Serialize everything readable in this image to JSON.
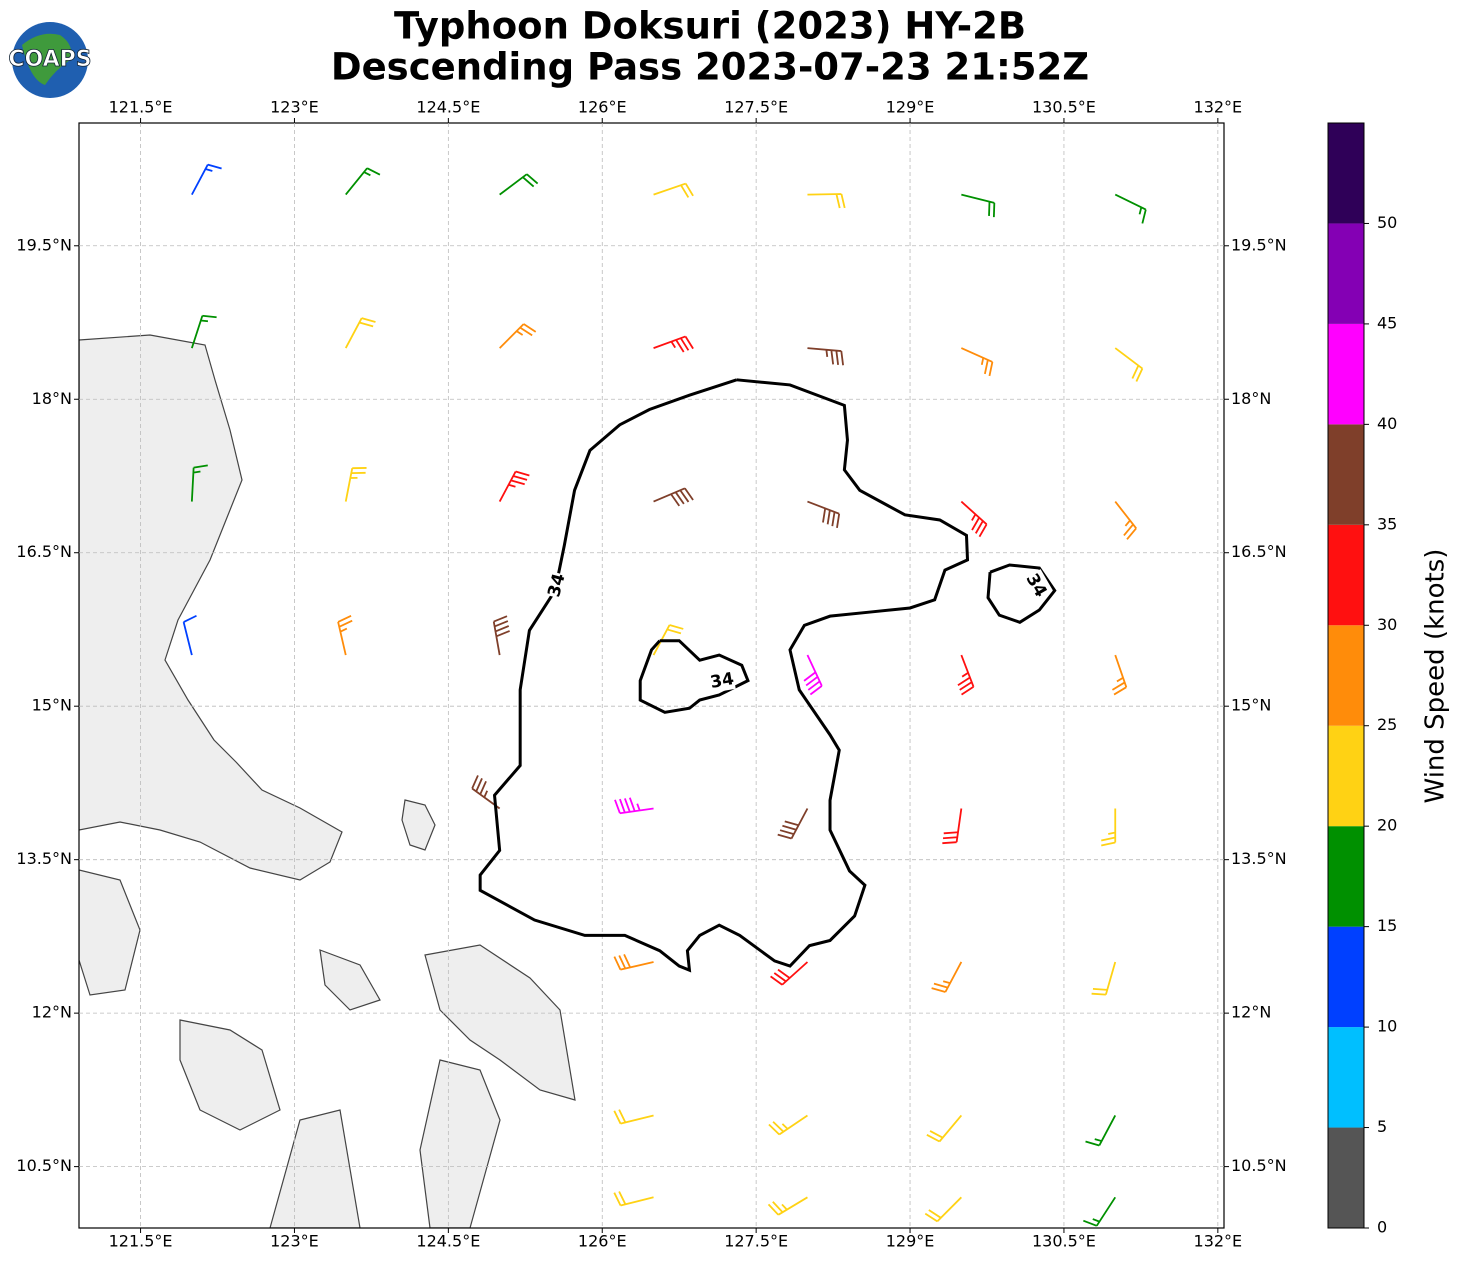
{
  "header": {
    "title_line1": "Typhoon Doksuri (2023) HY-2B",
    "title_line2": "Descending Pass 2023-07-23 21:52Z"
  },
  "logo": "COAPS",
  "map": {
    "xlim": [
      120.9,
      132.06
    ],
    "ylim": [
      9.9,
      20.7
    ],
    "grid": true,
    "xticks": [
      {
        "value": 121.5,
        "label": "121.5°E"
      },
      {
        "value": 123,
        "label": "123°E"
      },
      {
        "value": 124.5,
        "label": "124.5°E"
      },
      {
        "value": 126,
        "label": "126°E"
      },
      {
        "value": 127.5,
        "label": "127.5°E"
      },
      {
        "value": 129,
        "label": "129°E"
      },
      {
        "value": 130.5,
        "label": "130.5°E"
      },
      {
        "value": 132,
        "label": "132°E"
      }
    ],
    "yticks": [
      {
        "value": 19.5,
        "label": "19.5°N"
      },
      {
        "value": 18,
        "label": "18°N"
      },
      {
        "value": 16.5,
        "label": "16.5°N"
      },
      {
        "value": 15,
        "label": "15°N"
      },
      {
        "value": 13.5,
        "label": "13.5°N"
      },
      {
        "value": 12,
        "label": "12°N"
      },
      {
        "value": 10.5,
        "label": "10.5°N"
      }
    ],
    "wind_barbs": {
      "lon": [
        122,
        123.5,
        125,
        126.5,
        128,
        129.5,
        131
      ],
      "lat": [
        20,
        18.5,
        17,
        15.5,
        14,
        12.5,
        11,
        10.2
      ],
      "speed": [
        [
          13,
          16,
          18,
          20,
          21,
          19,
          17
        ],
        [
          15,
          22,
          27,
          33,
          35,
          27,
          21
        ],
        [
          17,
          24,
          33,
          38,
          38,
          33,
          27
        ],
        [
          12,
          25,
          38,
          20,
          40,
          33,
          27
        ],
        [
          null,
          null,
          37,
          43,
          39,
          30,
          24
        ],
        [
          null,
          null,
          null,
          28,
          30,
          25,
          21
        ],
        [
          null,
          null,
          null,
          22,
          24,
          22,
          17
        ],
        [
          null,
          null,
          null,
          20,
          23,
          21,
          16
        ]
      ],
      "direction": [
        [
          28,
          39,
          53,
          71,
          89,
          104,
          116
        ],
        [
          18,
          28,
          45,
          70,
          95,
          114,
          127
        ],
        [
          3,
          11,
          28,
          67,
          111,
          132,
          142
        ],
        [
          346,
          347,
          350,
          28,
          155,
          159,
          161
        ],
        [
          null,
          null,
          306,
          262,
          208,
          188,
          180
        ],
        [
          null,
          null,
          null,
          257,
          228,
          208,
          196
        ],
        [
          null,
          null,
          null,
          256,
          236,
          220,
          208
        ],
        [
          null,
          null,
          null,
          256,
          239,
          225,
          213
        ]
      ]
    },
    "contour": {
      "label": "34",
      "lines": [
        [
          [
            127.31,
            18.19
          ],
          [
            127.83,
            18.14
          ],
          [
            128.36,
            17.94
          ],
          [
            128.39,
            17.6
          ],
          [
            128.36,
            17.31
          ],
          [
            128.51,
            17.11
          ],
          [
            128.95,
            16.87
          ],
          [
            129.29,
            16.82
          ],
          [
            129.55,
            16.67
          ],
          [
            129.56,
            16.43
          ],
          [
            129.34,
            16.33
          ],
          [
            129.24,
            16.04
          ],
          [
            129.0,
            15.96
          ],
          [
            128.61,
            15.92
          ],
          [
            128.22,
            15.88
          ],
          [
            127.97,
            15.79
          ],
          [
            127.83,
            15.55
          ],
          [
            127.92,
            15.16
          ],
          [
            128.22,
            14.72
          ],
          [
            128.31,
            14.57
          ],
          [
            128.22,
            14.08
          ],
          [
            128.22,
            13.79
          ],
          [
            128.41,
            13.39
          ],
          [
            128.56,
            13.25
          ],
          [
            128.46,
            12.95
          ],
          [
            128.22,
            12.71
          ],
          [
            128.02,
            12.66
          ],
          [
            127.83,
            12.46
          ],
          [
            127.68,
            12.51
          ],
          [
            127.34,
            12.76
          ],
          [
            127.14,
            12.86
          ],
          [
            126.95,
            12.76
          ],
          [
            126.83,
            12.61
          ],
          [
            126.85,
            12.42
          ],
          [
            126.75,
            12.46
          ],
          [
            126.56,
            12.61
          ],
          [
            126.22,
            12.76
          ],
          [
            125.83,
            12.76
          ],
          [
            125.34,
            12.91
          ],
          [
            124.81,
            13.2
          ],
          [
            124.81,
            13.35
          ],
          [
            125.0,
            13.59
          ],
          [
            124.95,
            14.13
          ],
          [
            125.2,
            14.42
          ],
          [
            125.2,
            15.16
          ],
          [
            125.29,
            15.74
          ],
          [
            125.54,
            16.13
          ],
          [
            125.63,
            16.57
          ],
          [
            125.73,
            17.11
          ],
          [
            125.88,
            17.5
          ],
          [
            126.17,
            17.75
          ],
          [
            126.46,
            17.9
          ],
          [
            126.85,
            18.04
          ],
          [
            127.31,
            18.19
          ]
        ],
        [
          [
            126.56,
            15.64
          ],
          [
            126.75,
            15.64
          ],
          [
            126.95,
            15.45
          ],
          [
            127.14,
            15.5
          ],
          [
            127.36,
            15.4
          ],
          [
            127.42,
            15.25
          ],
          [
            127.14,
            15.11
          ],
          [
            126.95,
            15.06
          ],
          [
            126.85,
            14.98
          ],
          [
            126.61,
            14.94
          ],
          [
            126.37,
            15.06
          ],
          [
            126.37,
            15.25
          ],
          [
            126.48,
            15.55
          ],
          [
            126.56,
            15.64
          ]
        ],
        [
          [
            129.78,
            16.31
          ],
          [
            129.97,
            16.38
          ],
          [
            130.26,
            16.35
          ],
          [
            130.41,
            16.13
          ],
          [
            130.26,
            15.94
          ],
          [
            130.07,
            15.82
          ],
          [
            129.87,
            15.89
          ],
          [
            129.76,
            16.06
          ],
          [
            129.78,
            16.31
          ]
        ]
      ]
    }
  },
  "colorbar": {
    "label": "Wind Speed (knots)",
    "bounds": [
      0,
      5,
      10,
      15,
      20,
      25,
      30,
      35,
      40,
      45,
      50,
      55
    ],
    "colors": [
      "#555555",
      "#00bfff",
      "#0040ff",
      "#009000",
      "#ffd214",
      "#ff8c0a",
      "#ff1010",
      "#7f3f2a",
      "#ff00ff",
      "#8400b4",
      "#2f0058"
    ],
    "ticks": [
      0,
      5,
      10,
      15,
      20,
      25,
      30,
      35,
      40,
      45,
      50
    ]
  }
}
